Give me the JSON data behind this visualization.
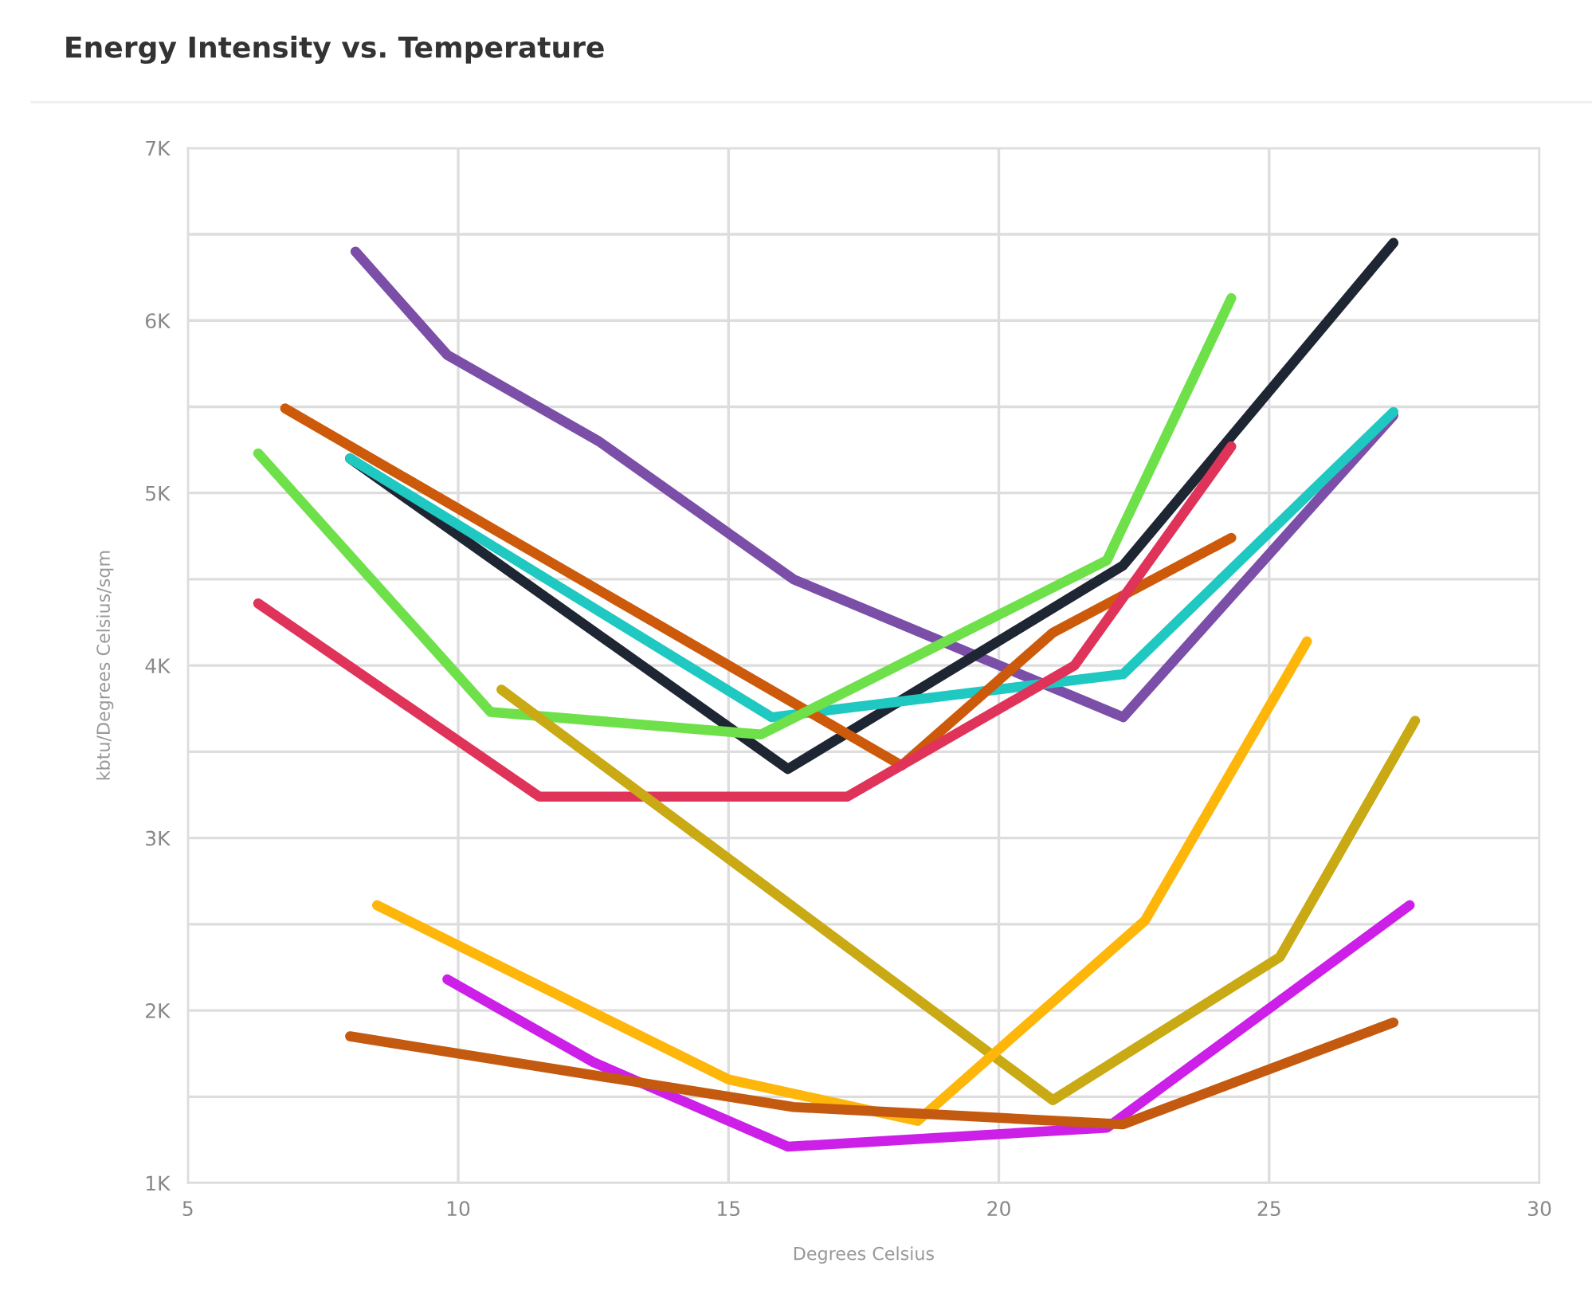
{
  "chart_data": {
    "type": "line",
    "title": "Energy Intensity vs. Temperature",
    "xlabel": "Degrees Celsius",
    "ylabel": "kbtu/Degrees Celsius/sqm",
    "xlim": [
      5,
      30
    ],
    "xticks": [
      5,
      10,
      15,
      20,
      25,
      30
    ],
    "ylim": [
      1000,
      7000
    ],
    "yticks": [
      {
        "value": 1000,
        "label": "1K"
      },
      {
        "value": 1500,
        "label": null
      },
      {
        "value": 2000,
        "label": "2K"
      },
      {
        "value": 2500,
        "label": null
      },
      {
        "value": 3000,
        "label": "3K"
      },
      {
        "value": 3500,
        "label": null
      },
      {
        "value": 4000,
        "label": "4K"
      },
      {
        "value": 4500,
        "label": null
      },
      {
        "value": 5000,
        "label": "5K"
      },
      {
        "value": 5500,
        "label": null
      },
      {
        "value": 6000,
        "label": "6K"
      },
      {
        "value": 6500,
        "label": null
      },
      {
        "value": 7000,
        "label": "7K"
      }
    ],
    "grid": true,
    "marker": "none",
    "line_style": "solid",
    "series": [
      {
        "color": "#7b4ea8",
        "x": [
          8.1,
          9.8,
          12.6,
          16.2,
          22.3,
          27.3
        ],
        "values": [
          6400,
          5800,
          5300,
          4500,
          3700,
          5450
        ]
      },
      {
        "color": "#1f2633",
        "x": [
          8.0,
          16.1,
          22.3,
          27.3
        ],
        "values": [
          5200,
          3400,
          4580,
          6450
        ]
      },
      {
        "color": "#1fc9c1",
        "x": [
          8.0,
          15.8,
          22.3,
          27.3
        ],
        "values": [
          5200,
          3700,
          3950,
          5470
        ]
      },
      {
        "color": "#cc5a0a",
        "x": [
          6.8,
          18.2,
          21.0,
          24.3
        ],
        "values": [
          5490,
          3420,
          4190,
          4740
        ]
      },
      {
        "color": "#6ee04a",
        "x": [
          6.3,
          10.6,
          15.6,
          22.0,
          24.3
        ],
        "values": [
          5230,
          3730,
          3600,
          4610,
          6130
        ]
      },
      {
        "color": "#e0335a",
        "x": [
          6.3,
          11.5,
          17.2,
          21.4,
          24.3
        ],
        "values": [
          4360,
          3240,
          3240,
          4000,
          5270
        ]
      },
      {
        "color": "#c9aa14",
        "x": [
          10.8,
          21.0,
          25.2,
          27.7
        ],
        "values": [
          3860,
          1480,
          2310,
          3680
        ]
      },
      {
        "color": "#ffb60a",
        "x": [
          8.5,
          15.0,
          18.5,
          22.7,
          25.7
        ],
        "values": [
          2610,
          1600,
          1360,
          2520,
          4140
        ]
      },
      {
        "color": "#cc1fe8",
        "x": [
          9.8,
          12.5,
          16.1,
          22.0,
          27.6
        ],
        "values": [
          2180,
          1700,
          1210,
          1320,
          2610
        ]
      },
      {
        "color": "#c45a10",
        "x": [
          8.0,
          16.2,
          22.3,
          27.3
        ],
        "values": [
          1850,
          1440,
          1340,
          1930
        ]
      }
    ]
  }
}
